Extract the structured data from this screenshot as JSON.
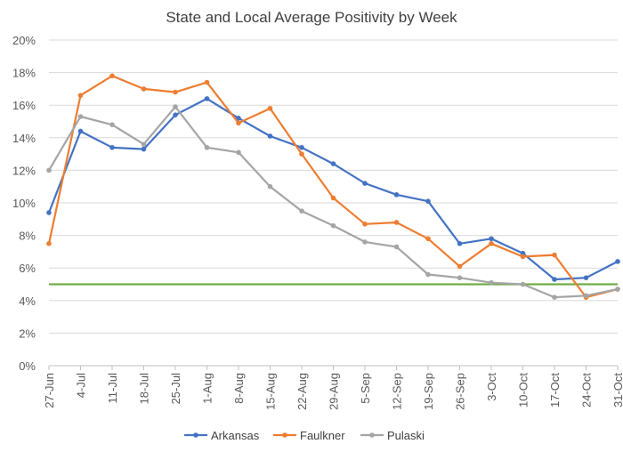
{
  "chart_data": {
    "type": "line",
    "title": "State and Local Average Positivity by Week",
    "xlabel": "",
    "ylabel": "",
    "categories": [
      "27-Jun",
      "4-Jul",
      "11-Jul",
      "18-Jul",
      "25-Jul",
      "1-Aug",
      "8-Aug",
      "15-Aug",
      "22-Aug",
      "29-Aug",
      "5-Sep",
      "12-Sep",
      "19-Sep",
      "26-Sep",
      "3-Oct",
      "10-Oct",
      "17-Oct",
      "24-Oct",
      "31-Oct"
    ],
    "yticks": [
      "0%",
      "2%",
      "4%",
      "6%",
      "8%",
      "10%",
      "12%",
      "14%",
      "16%",
      "18%",
      "20%"
    ],
    "ylim": [
      0,
      20
    ],
    "grid": true,
    "legend_position": "bottom",
    "series": [
      {
        "name": "Arkansas",
        "color": "#4472C4",
        "values": [
          9.4,
          14.4,
          13.4,
          13.3,
          15.4,
          16.4,
          15.2,
          14.1,
          13.4,
          12.4,
          11.2,
          10.5,
          10.1,
          7.5,
          7.8,
          6.9,
          5.3,
          5.4,
          6.4
        ]
      },
      {
        "name": "Faulkner",
        "color": "#ED7D31",
        "values": [
          7.5,
          16.6,
          17.8,
          17.0,
          16.8,
          17.4,
          14.9,
          15.8,
          13.0,
          10.3,
          8.7,
          8.8,
          7.8,
          6.1,
          7.5,
          6.7,
          6.8,
          4.2,
          4.7
        ]
      },
      {
        "name": "Pulaski",
        "color": "#A5A5A5",
        "values": [
          12.0,
          15.3,
          14.8,
          13.6,
          15.9,
          13.4,
          13.1,
          11.0,
          9.5,
          8.6,
          7.6,
          7.3,
          5.6,
          5.4,
          5.1,
          5.0,
          4.2,
          4.3,
          4.7
        ]
      }
    ],
    "reference_line": {
      "value": 5.0,
      "color": "#70AD47"
    }
  }
}
